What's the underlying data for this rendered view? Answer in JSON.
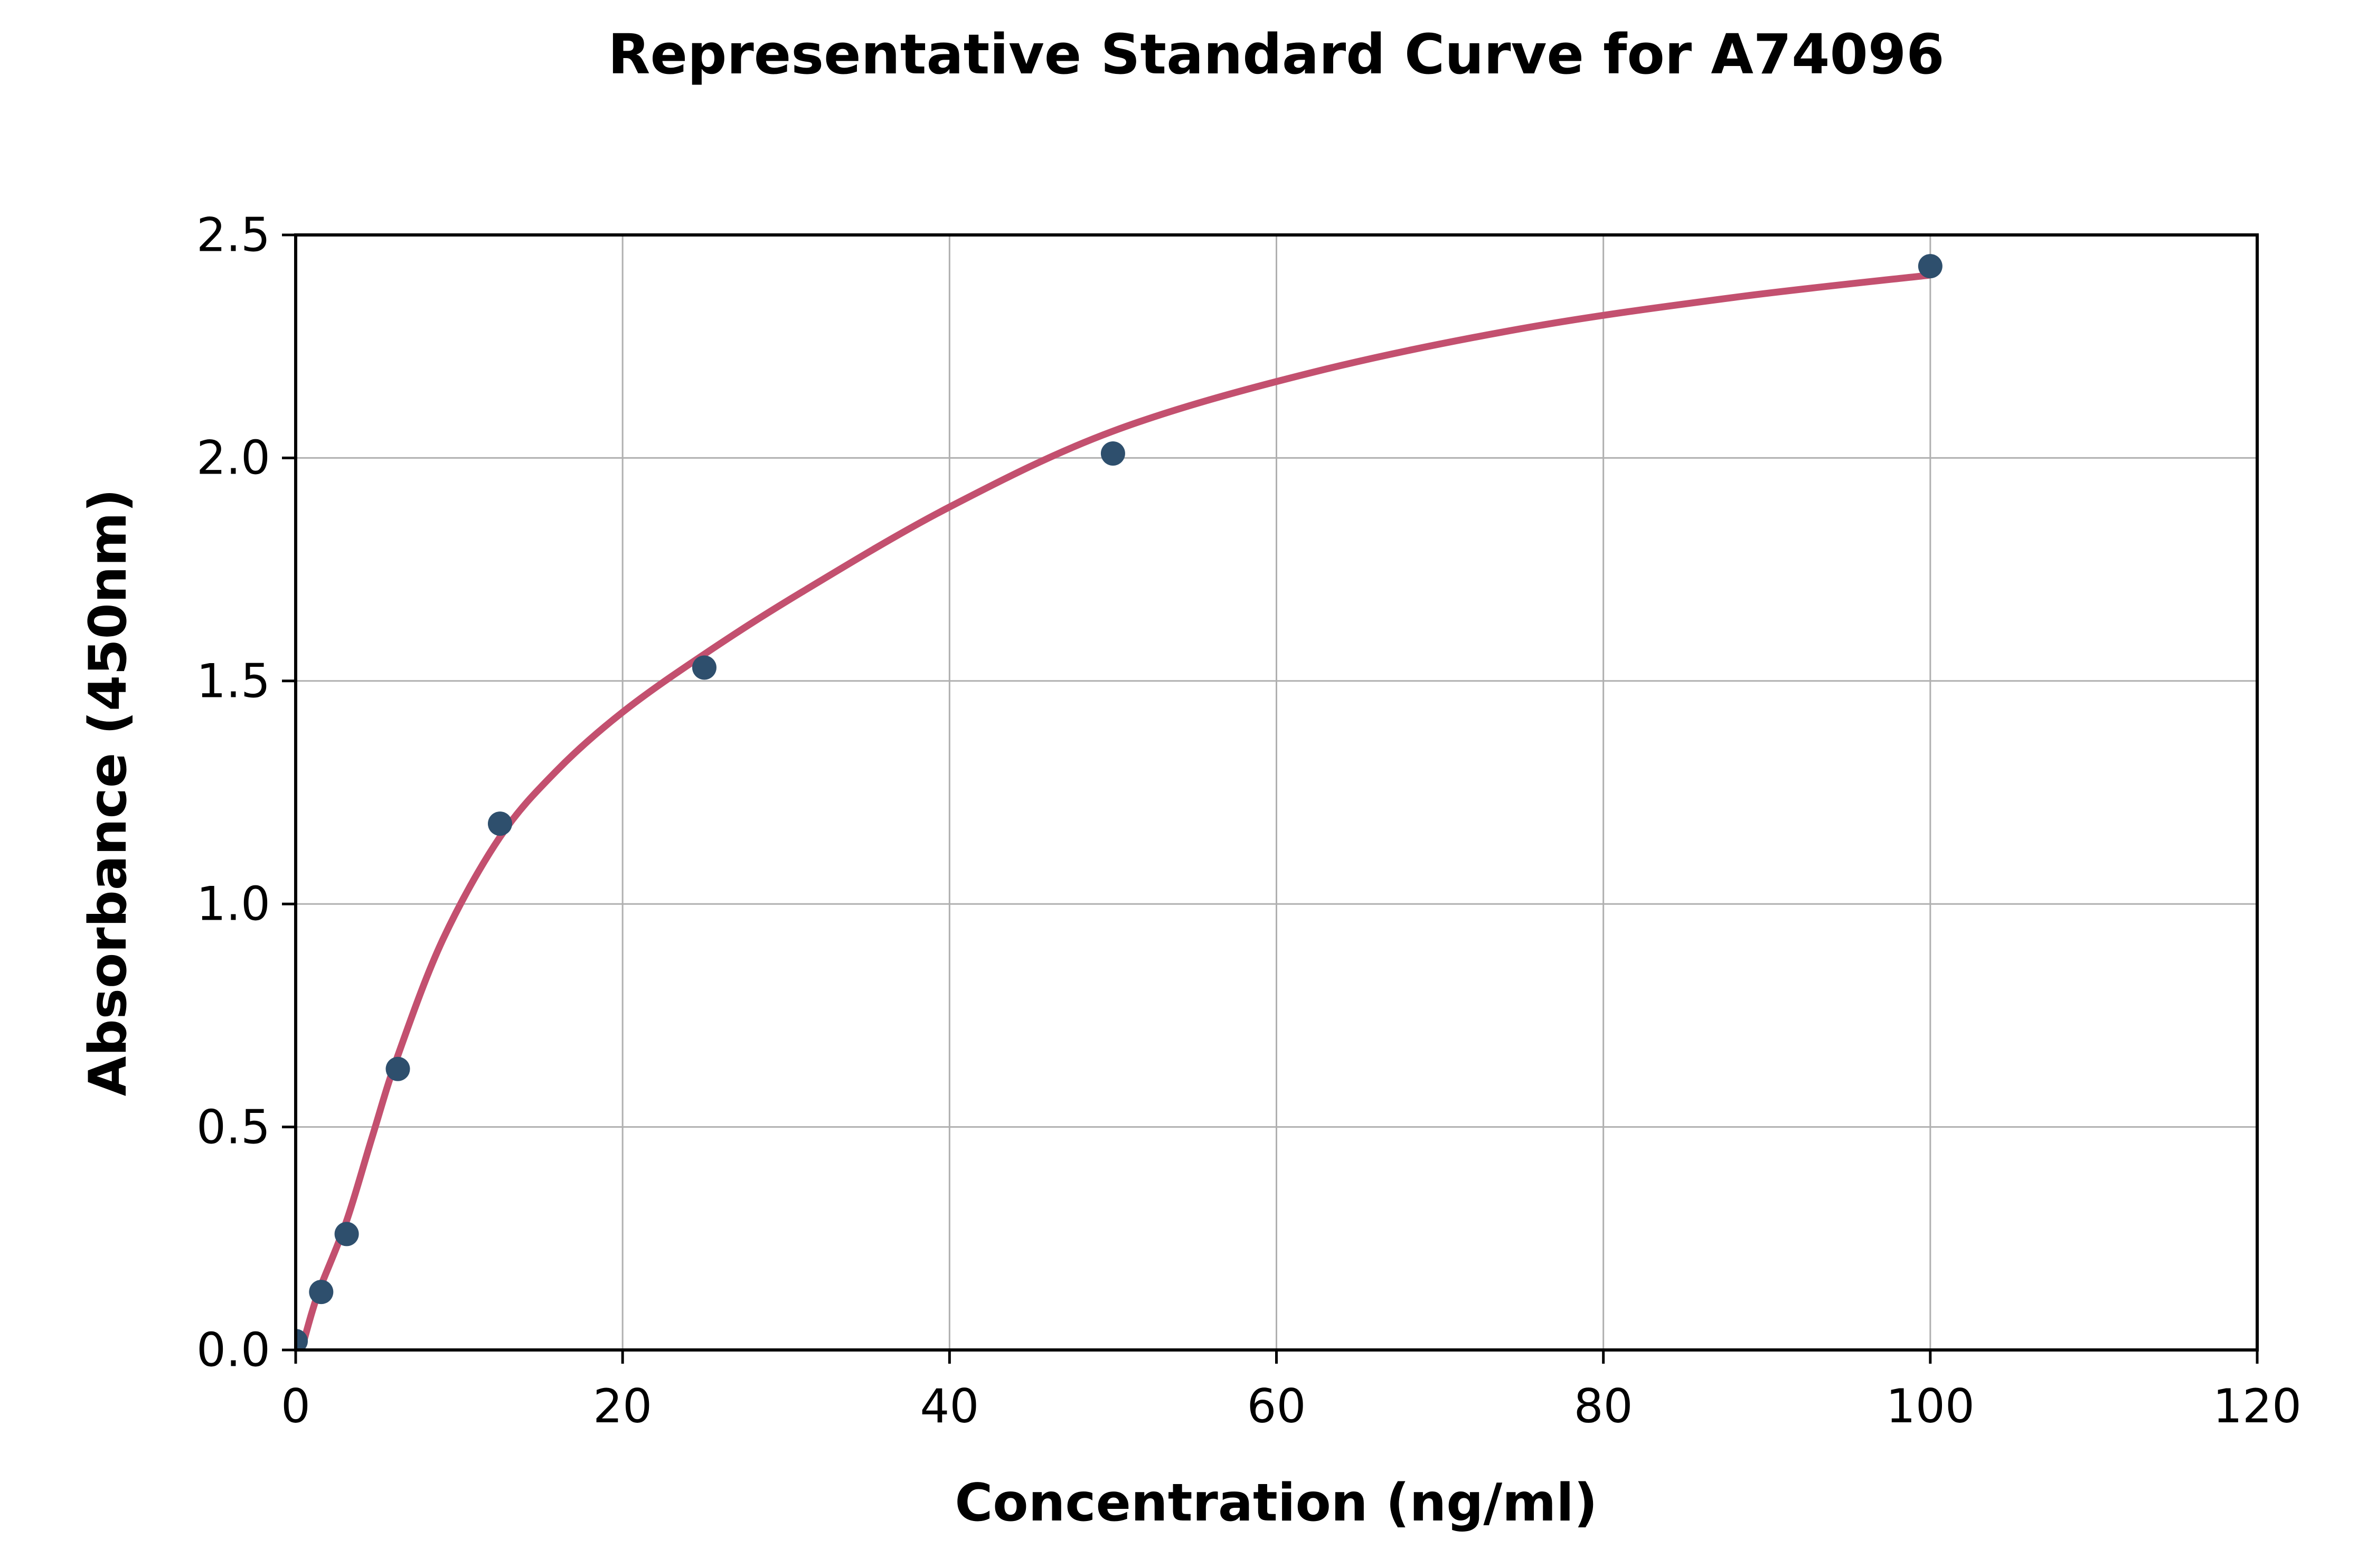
{
  "chart_data": {
    "type": "scatter",
    "title": "Representative Standard Curve for A74096",
    "xlabel": "Concentration (ng/ml)",
    "ylabel": "Absorbance (450nm)",
    "xlim": [
      0,
      120
    ],
    "ylim": [
      0,
      2.5
    ],
    "grid": true,
    "legend": "none",
    "xticks": [
      {
        "value": 0,
        "label": "0"
      },
      {
        "value": 20,
        "label": "20"
      },
      {
        "value": 40,
        "label": "40"
      },
      {
        "value": 60,
        "label": "60"
      },
      {
        "value": 80,
        "label": "80"
      },
      {
        "value": 100,
        "label": "100"
      },
      {
        "value": 120,
        "label": "120"
      }
    ],
    "yticks": [
      {
        "value": 0.0,
        "label": "0.0"
      },
      {
        "value": 0.5,
        "label": "0.5"
      },
      {
        "value": 1.0,
        "label": "1.0"
      },
      {
        "value": 1.5,
        "label": "1.5"
      },
      {
        "value": 2.0,
        "label": "2.0"
      },
      {
        "value": 2.5,
        "label": "2.5"
      }
    ],
    "points": [
      {
        "x": 0,
        "y": 0.02
      },
      {
        "x": 1.56,
        "y": 0.13
      },
      {
        "x": 3.12,
        "y": 0.26
      },
      {
        "x": 6.25,
        "y": 0.63
      },
      {
        "x": 12.5,
        "y": 1.18
      },
      {
        "x": 25,
        "y": 1.53
      },
      {
        "x": 50,
        "y": 2.01
      },
      {
        "x": 100,
        "y": 2.43
      }
    ],
    "fit_curve": {
      "points": [
        [
          0.35,
          0.0
        ],
        [
          1.0,
          0.085
        ],
        [
          1.56,
          0.145
        ],
        [
          3.12,
          0.29
        ],
        [
          4.7,
          0.48
        ],
        [
          6.25,
          0.66
        ],
        [
          9.0,
          0.92
        ],
        [
          12.5,
          1.15
        ],
        [
          16.0,
          1.3
        ],
        [
          20.0,
          1.43
        ],
        [
          25.0,
          1.56
        ],
        [
          31.0,
          1.7
        ],
        [
          40.0,
          1.89
        ],
        [
          50.0,
          2.06
        ],
        [
          62.0,
          2.19
        ],
        [
          75.0,
          2.29
        ],
        [
          88.0,
          2.36
        ],
        [
          100.0,
          2.41
        ]
      ]
    },
    "colors": {
      "point": "#2e4f6d",
      "curve": "#c3506f",
      "grid": "#b0b0b0",
      "axis": "#000000",
      "background": "#ffffff"
    }
  }
}
